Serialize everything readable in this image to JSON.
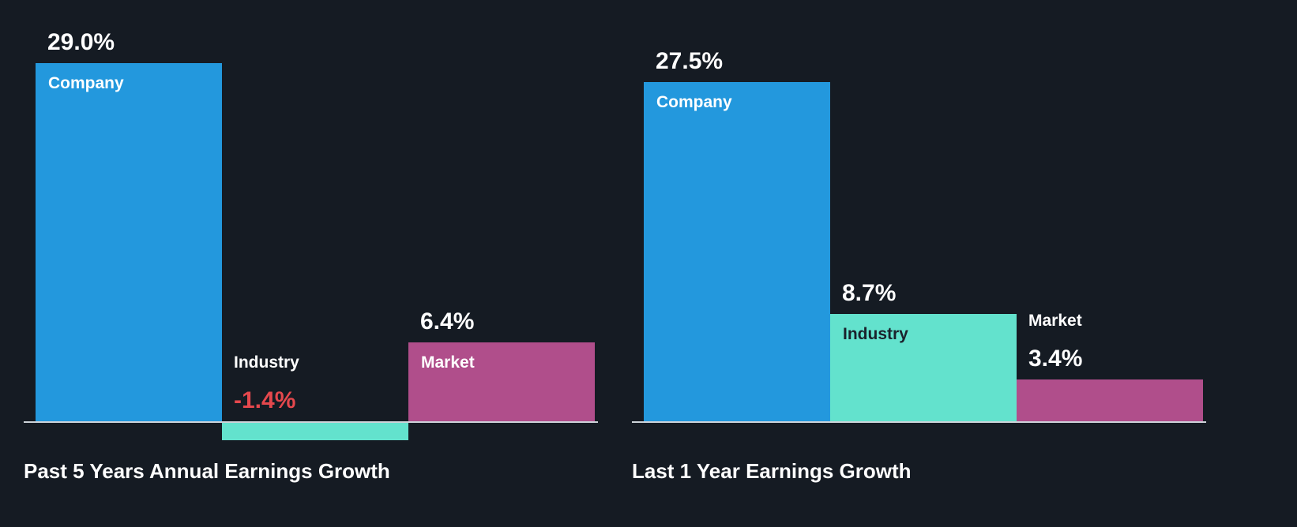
{
  "theme": {
    "background": "#151B23",
    "axis_line_color": "#CDD3D9",
    "title_color": "#FFFFFF",
    "negative_value_color": "#E5484D"
  },
  "chart_data": [
    {
      "type": "bar",
      "title": "Past 5 Years Annual Earnings Growth",
      "categories": [
        "Company",
        "Industry",
        "Market"
      ],
      "values": [
        29.0,
        -1.4,
        6.4
      ],
      "value_labels": [
        "29.0%",
        "-1.4%",
        "6.4%"
      ],
      "unit": "percent",
      "xlabel": "",
      "ylabel": "",
      "ylim": [
        -2,
        31
      ],
      "grid": false,
      "legend_position": "none",
      "bar_colors": [
        "#2398DD",
        "#63E2CD",
        "#B04E8B"
      ],
      "category_label_colors": [
        "#FFFFFF",
        "#FFFFFF",
        "#FFFFFF"
      ],
      "value_label_colors": [
        "#FFFFFF",
        "#E5484D",
        "#FFFFFF"
      ]
    },
    {
      "type": "bar",
      "title": "Last 1 Year Earnings Growth",
      "categories": [
        "Company",
        "Industry",
        "Market"
      ],
      "values": [
        27.5,
        8.7,
        3.4
      ],
      "value_labels": [
        "27.5%",
        "8.7%",
        "3.4%"
      ],
      "unit": "percent",
      "xlabel": "",
      "ylabel": "",
      "ylim": [
        -2,
        31
      ],
      "grid": false,
      "legend_position": "none",
      "bar_colors": [
        "#2398DD",
        "#63E2CD",
        "#B04E8B"
      ],
      "category_label_colors": [
        "#FFFFFF",
        "#1B222C",
        "#FFFFFF"
      ],
      "value_label_colors": [
        "#FFFFFF",
        "#FFFFFF",
        "#FFFFFF"
      ]
    }
  ]
}
